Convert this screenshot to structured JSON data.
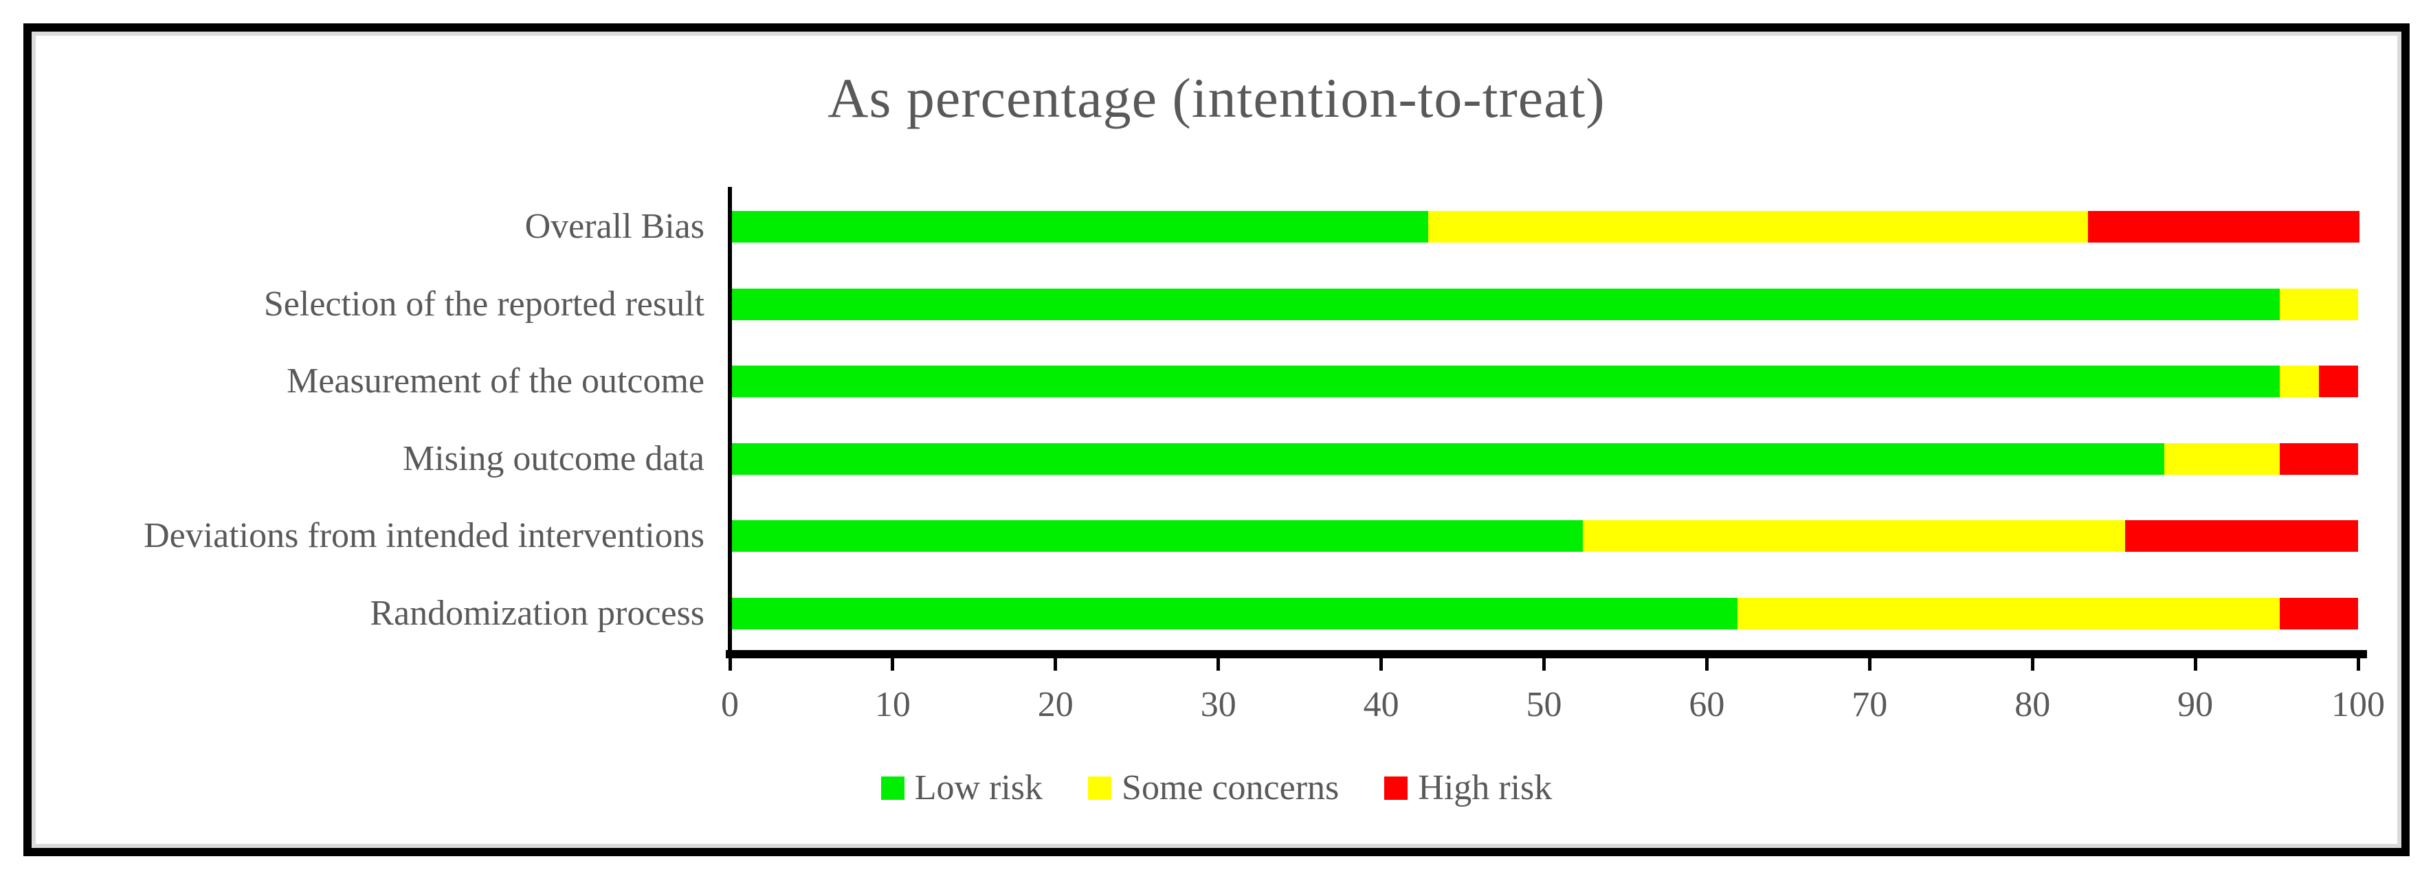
{
  "figure": {
    "title": "As percentage (intention-to-treat)"
  },
  "chart_data": {
    "type": "bar",
    "orientation": "horizontal",
    "stacked": true,
    "title": "As percentage (intention-to-treat)",
    "categories_top_to_bottom": [
      "Overall Bias",
      "Selection of the reported result",
      "Measurement of the outcome",
      "Mising outcome data",
      "Deviations from intended interventions",
      "Randomization process"
    ],
    "series": [
      {
        "name": "Low risk",
        "color": "#00ee00",
        "values": [
          42.9,
          95.2,
          95.2,
          88.1,
          52.4,
          61.9
        ]
      },
      {
        "name": "Some concerns",
        "color": "#ffff00",
        "values": [
          40.5,
          4.8,
          2.4,
          7.1,
          33.3,
          33.3
        ]
      },
      {
        "name": "High risk",
        "color": "#ff0000",
        "values": [
          16.7,
          0,
          2.4,
          4.8,
          14.3,
          4.8
        ]
      }
    ],
    "xlabel": "",
    "ylabel": "",
    "x_axis": {
      "min": 0,
      "max": 100,
      "ticks": [
        0,
        10,
        20,
        30,
        40,
        50,
        60,
        70,
        80,
        90,
        100
      ]
    },
    "grid": false,
    "legend": {
      "position": "bottom",
      "entries": [
        {
          "label": "Low risk",
          "color": "#00ee00"
        },
        {
          "label": "Some concerns",
          "color": "#ffff00"
        },
        {
          "label": "High risk",
          "color": "#ff0000"
        }
      ]
    },
    "colors": {
      "text": "#595959",
      "axis": "#000000",
      "frame_border": "#000000",
      "frame_inner_line": "#dbdbdb",
      "background": "#ffffff"
    }
  }
}
